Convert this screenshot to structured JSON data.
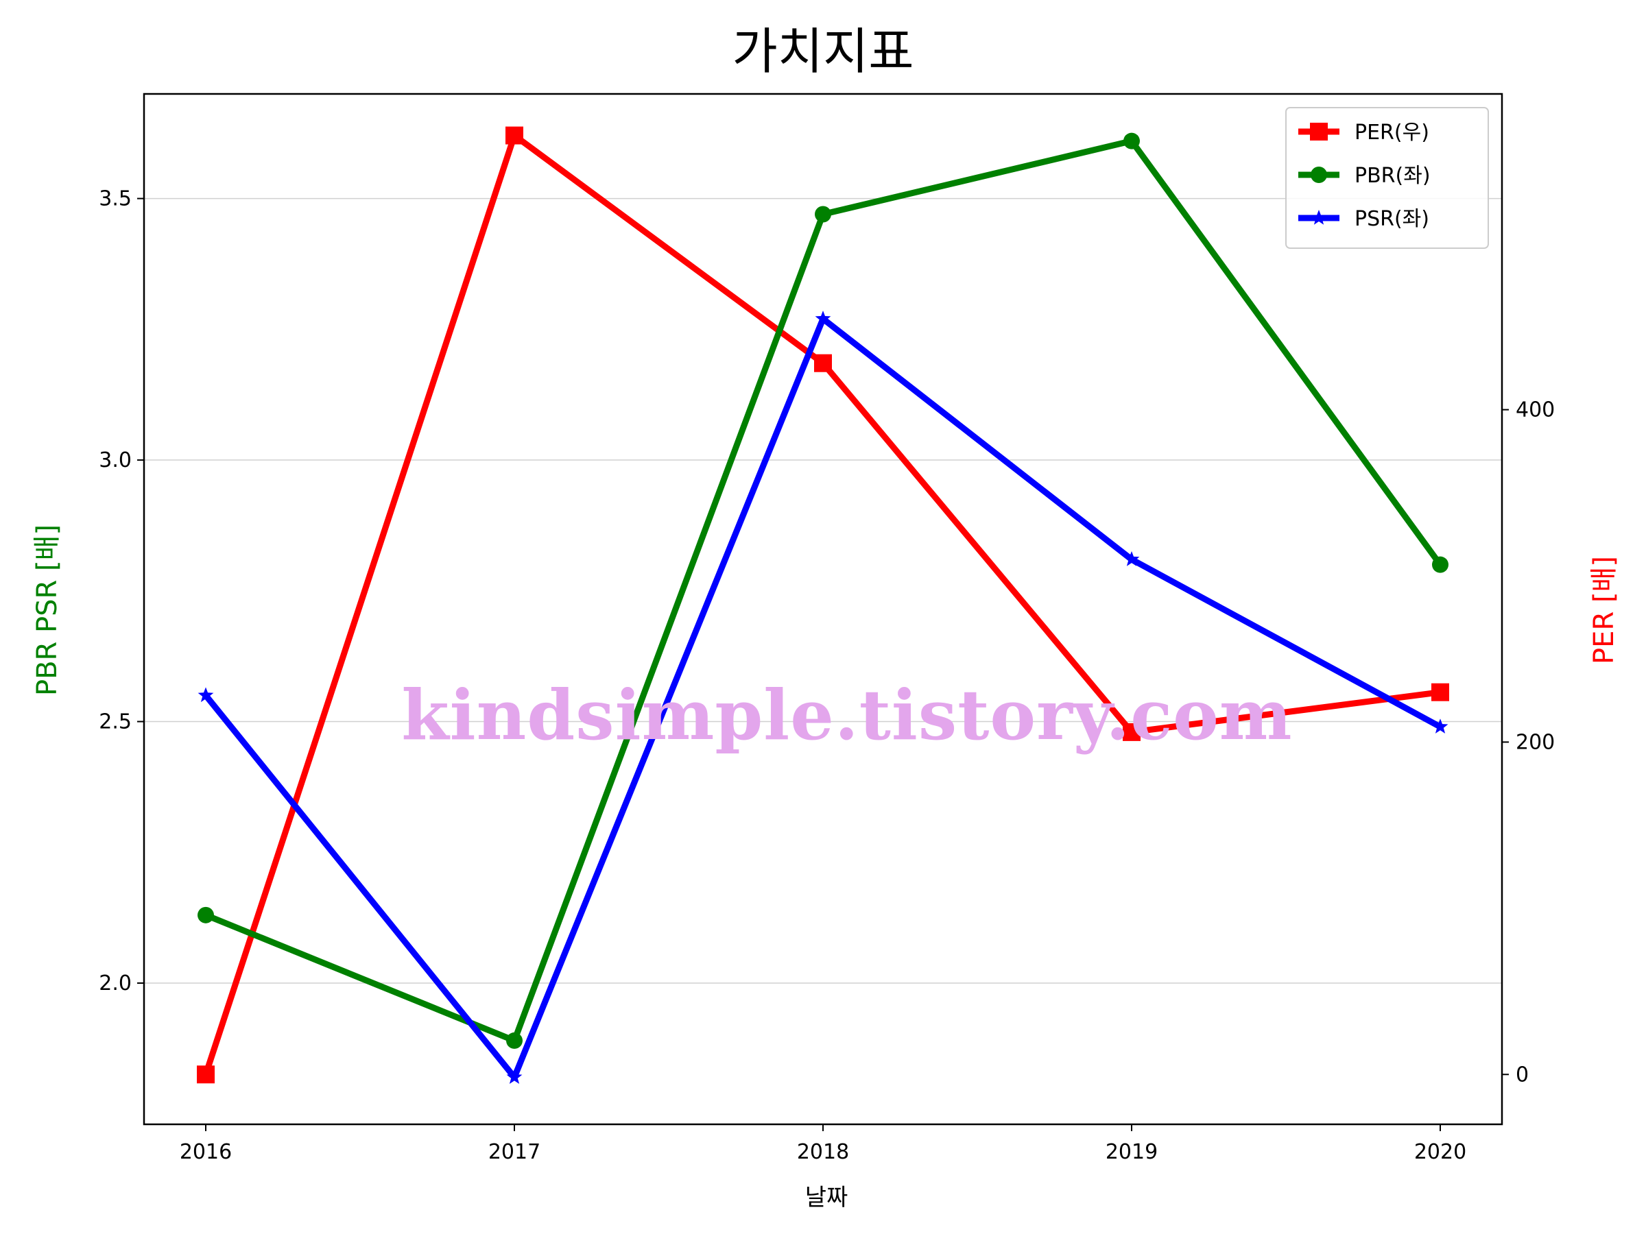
{
  "chart_data": {
    "type": "line",
    "title": "가치지표",
    "xlabel": "날짜",
    "ylabel_left": "PBR PSR [배]",
    "ylabel_right": "PER [배]",
    "categories": [
      "2016",
      "2017",
      "2018",
      "2019",
      "2020"
    ],
    "ylim_left": [
      1.73,
      3.7
    ],
    "ylim_right": [
      -30,
      590
    ],
    "yticks_left": [
      "2.0",
      "2.5",
      "3.0",
      "3.5"
    ],
    "yticks_right": [
      "0",
      "200",
      "400"
    ],
    "grid": "horizontal",
    "legend_position": "top-right",
    "series": [
      {
        "name": "PER(우)",
        "axis": "right",
        "color": "#ff0000",
        "marker": "square",
        "values": [
          0,
          565,
          428,
          206,
          230
        ]
      },
      {
        "name": "PBR(좌)",
        "axis": "left",
        "color": "#008000",
        "marker": "circle",
        "values": [
          2.13,
          1.89,
          3.47,
          3.61,
          2.8
        ]
      },
      {
        "name": "PSR(좌)",
        "axis": "left",
        "color": "#0000ff",
        "marker": "star",
        "values": [
          2.55,
          1.82,
          3.27,
          2.81,
          2.49
        ]
      }
    ],
    "colors": {
      "left_axis_label": "#008000",
      "right_axis_label": "#ff0000"
    },
    "watermark": "kindsimple.tistory.com"
  }
}
